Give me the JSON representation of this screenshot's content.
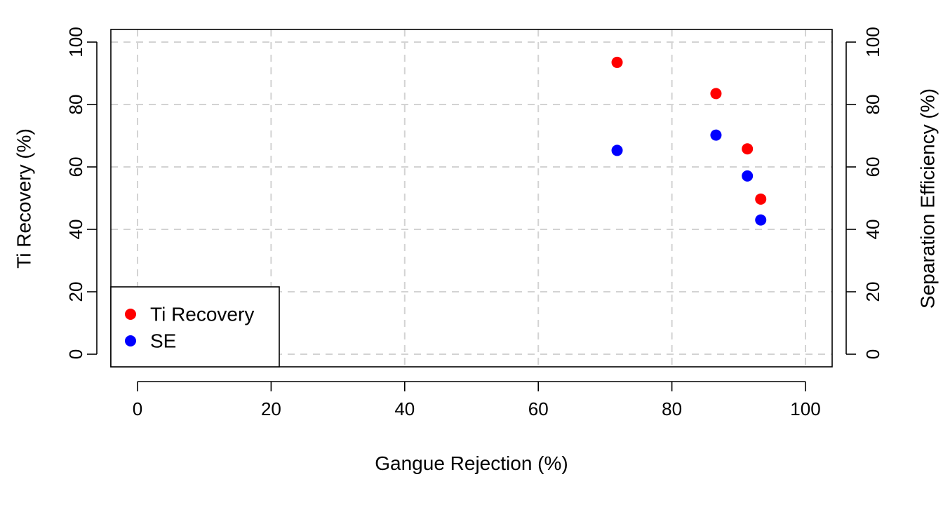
{
  "chart_data": {
    "type": "scatter",
    "title": "",
    "xlabel": "Gangue Rejection (%)",
    "ylabel": "Ti Recovery (%)",
    "y2label": "Separation Efficiency (%)",
    "xlim": [
      0,
      100
    ],
    "ylim": [
      0,
      100
    ],
    "y2lim": [
      0,
      100
    ],
    "xticks": [
      0,
      20,
      40,
      60,
      80,
      100
    ],
    "yticks": [
      0,
      20,
      40,
      60,
      80,
      100
    ],
    "y2ticks": [
      0,
      20,
      40,
      60,
      80,
      100
    ],
    "grid": true,
    "legend": "bottom-left",
    "series": [
      {
        "name": "Ti Recovery",
        "color": "#ff0000",
        "axis": "left",
        "points": [
          {
            "x": 71.8,
            "y": 93.5
          },
          {
            "x": 86.6,
            "y": 83.5
          },
          {
            "x": 91.3,
            "y": 65.8
          },
          {
            "x": 93.3,
            "y": 49.7
          }
        ]
      },
      {
        "name": "SE",
        "color": "#0000ff",
        "axis": "right",
        "points": [
          {
            "x": 71.8,
            "y": 65.3
          },
          {
            "x": 86.6,
            "y": 70.2
          },
          {
            "x": 91.3,
            "y": 57.1
          },
          {
            "x": 93.3,
            "y": 43.0
          }
        ]
      }
    ]
  }
}
